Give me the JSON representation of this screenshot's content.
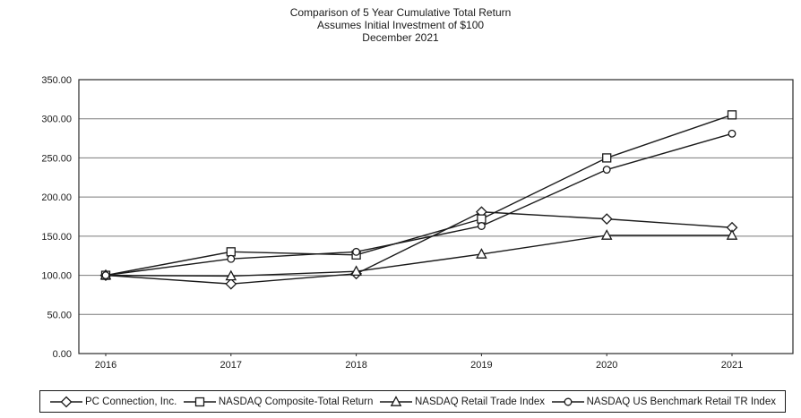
{
  "title": {
    "line1": "Comparison of 5 Year Cumulative Total Return",
    "line2": "Assumes Initial Investment of $100",
    "line3": "December 2021"
  },
  "chart_data": {
    "type": "line",
    "x_labels": [
      "2016",
      "2017",
      "2018",
      "2019",
      "2020",
      "2021"
    ],
    "y_tick_labels": [
      "0.00",
      "50.00",
      "100.00",
      "150.00",
      "200.00",
      "250.00",
      "300.00",
      "350.00"
    ],
    "y_ticks": [
      0,
      50,
      100,
      150,
      200,
      250,
      300,
      350
    ],
    "ylim": [
      0,
      350
    ],
    "grid": "horizontal",
    "legend_position": "bottom",
    "line_color": "#1a1a1a",
    "grid_color": "#7a7a7a",
    "marker_fill": "#ffffff",
    "series": [
      {
        "name": "PC Connection, Inc.",
        "marker": "diamond",
        "values": [
          100,
          89,
          102,
          181,
          172,
          161
        ]
      },
      {
        "name": "NASDAQ Composite-Total Return",
        "marker": "square",
        "values": [
          100,
          130,
          126,
          172,
          250,
          305
        ]
      },
      {
        "name": "NASDAQ Retail Trade Index",
        "marker": "triangle",
        "values": [
          100,
          99,
          105,
          127,
          151,
          151
        ]
      },
      {
        "name": "NASDAQ US Benchmark Retail TR Index",
        "marker": "circle",
        "values": [
          100,
          121,
          130,
          163,
          235,
          281
        ]
      }
    ]
  }
}
